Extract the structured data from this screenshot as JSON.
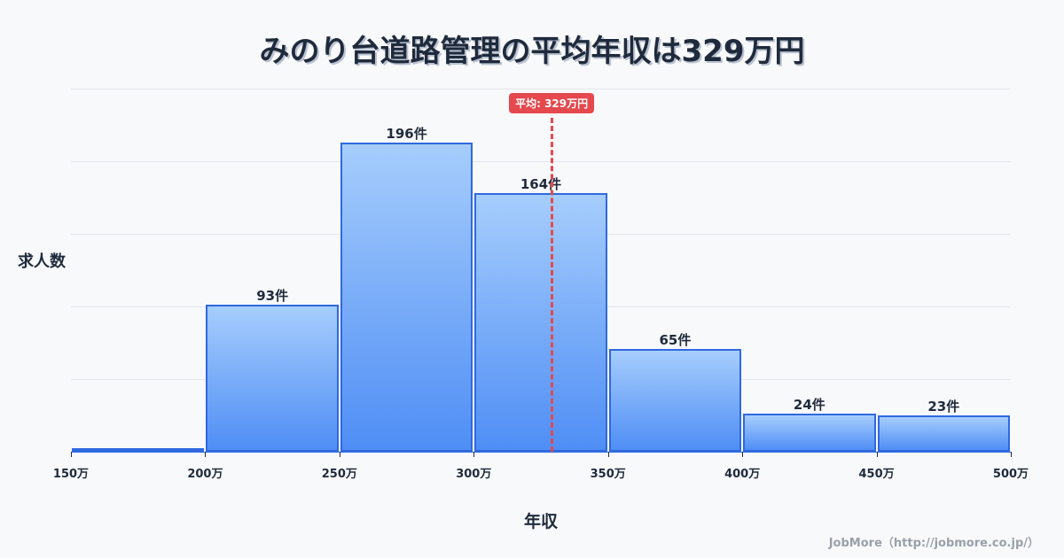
{
  "title": "みのり台道路管理の平均年収は329万円",
  "y_axis_label": "求人数",
  "x_axis_label": "年収",
  "mean_badge": "平均: 329万円",
  "credit": "JobMore（http://jobmore.co.jp/）",
  "colors": {
    "bar_fill_top": "#a6cdfc",
    "bar_fill_bottom": "#4f8ef5",
    "bar_border": "#2f69e0",
    "mean_line": "#e5484d",
    "text": "#1f2a3c"
  },
  "chart_data": {
    "type": "bar",
    "title": "みのり台道路管理の平均年収は329万円",
    "xlabel": "年収",
    "ylabel": "求人数",
    "bins": [
      "150万-200万",
      "200万-250万",
      "250万-300万",
      "300万-350万",
      "350万-400万",
      "400万-450万",
      "450万-500万"
    ],
    "categories": [
      "150万",
      "200万",
      "250万",
      "300万",
      "350万",
      "400万",
      "450万",
      "500万"
    ],
    "values": [
      2,
      93,
      196,
      164,
      65,
      24,
      23
    ],
    "value_labels": [
      "",
      "93件",
      "196件",
      "164件",
      "65件",
      "24件",
      "23件"
    ],
    "mean": 329,
    "mean_label": "平均: 329万円",
    "ylim": [
      0,
      230
    ],
    "grid": true,
    "legend": "none"
  },
  "ticks": [
    "150万",
    "200万",
    "250万",
    "300万",
    "350万",
    "400万",
    "450万",
    "500万"
  ]
}
